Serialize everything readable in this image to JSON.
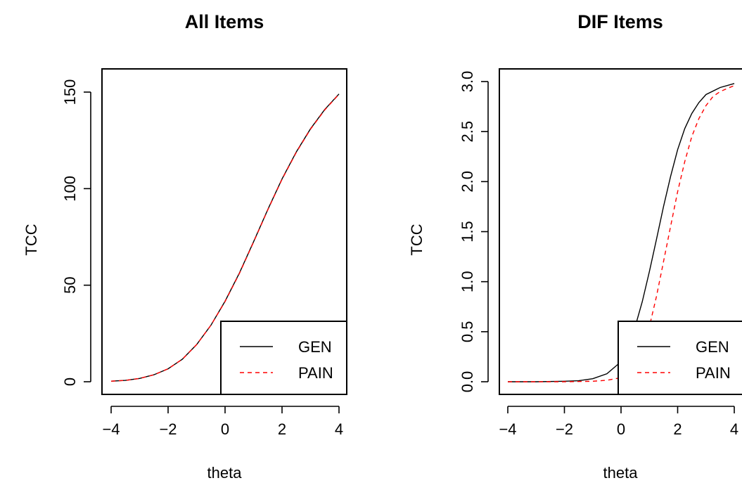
{
  "chart_data": [
    {
      "type": "line",
      "title": "All Items",
      "xlabel": "theta",
      "ylabel": "TCC",
      "xlim": [
        -4,
        4
      ],
      "ylim": [
        0,
        150
      ],
      "x_ticks": [
        "-4",
        "-2",
        "0",
        "2",
        "4"
      ],
      "y_ticks": [
        "0",
        "50",
        "100",
        "150"
      ],
      "legend_position": "bottom-right",
      "series": [
        {
          "name": "GEN",
          "color": "#000000",
          "style": "solid",
          "x": [
            -4,
            -3.5,
            -3,
            -2.5,
            -2,
            -1.5,
            -1,
            -0.5,
            0,
            0.5,
            1,
            1.5,
            2,
            2.5,
            3,
            3.5,
            4
          ],
          "y": [
            0.3,
            0.7,
            1.7,
            3.6,
            6.7,
            11.7,
            19.2,
            29.2,
            41.7,
            56.2,
            72.5,
            89.2,
            105,
            119,
            131,
            141,
            149
          ]
        },
        {
          "name": "PAIN",
          "color": "#ff0000",
          "style": "dashed",
          "x": [
            -4,
            -3.5,
            -3,
            -2.5,
            -2,
            -1.5,
            -1,
            -0.5,
            0,
            0.5,
            1,
            1.5,
            2,
            2.5,
            3,
            3.5,
            4
          ],
          "y": [
            0.3,
            0.7,
            1.7,
            3.6,
            6.7,
            11.7,
            19.2,
            29.2,
            41.5,
            56,
            72.3,
            89,
            104.8,
            118.8,
            130.8,
            140.8,
            148.9
          ]
        }
      ]
    },
    {
      "type": "line",
      "title": "DIF Items",
      "xlabel": "theta",
      "ylabel": "TCC",
      "xlim": [
        -4,
        4
      ],
      "ylim": [
        0,
        3
      ],
      "x_ticks": [
        "-4",
        "-2",
        "0",
        "2",
        "4"
      ],
      "y_ticks": [
        "0.0",
        "0.5",
        "1.0",
        "1.5",
        "2.0",
        "2.5",
        "3.0"
      ],
      "legend_position": "bottom-right",
      "series": [
        {
          "name": "GEN",
          "color": "#000000",
          "style": "solid",
          "x": [
            -4,
            -3,
            -2,
            -1.5,
            -1,
            -0.5,
            0,
            0.25,
            0.5,
            0.75,
            1,
            1.25,
            1.5,
            1.75,
            2,
            2.25,
            2.5,
            2.75,
            3,
            3.5,
            4
          ],
          "y": [
            0,
            0,
            0.005,
            0.01,
            0.03,
            0.08,
            0.2,
            0.35,
            0.55,
            0.8,
            1.1,
            1.42,
            1.75,
            2.05,
            2.32,
            2.53,
            2.68,
            2.79,
            2.87,
            2.94,
            2.98
          ]
        },
        {
          "name": "PAIN",
          "color": "#ff0000",
          "style": "dashed",
          "x": [
            -4,
            -3,
            -2,
            -1,
            -0.5,
            0,
            0.5,
            0.75,
            1,
            1.25,
            1.5,
            1.75,
            2,
            2.25,
            2.5,
            2.75,
            3,
            3.25,
            3.5,
            4
          ],
          "y": [
            0,
            0,
            0,
            0.005,
            0.015,
            0.04,
            0.15,
            0.3,
            0.55,
            0.85,
            1.2,
            1.55,
            1.9,
            2.2,
            2.45,
            2.63,
            2.76,
            2.85,
            2.9,
            2.96
          ]
        }
      ]
    }
  ]
}
